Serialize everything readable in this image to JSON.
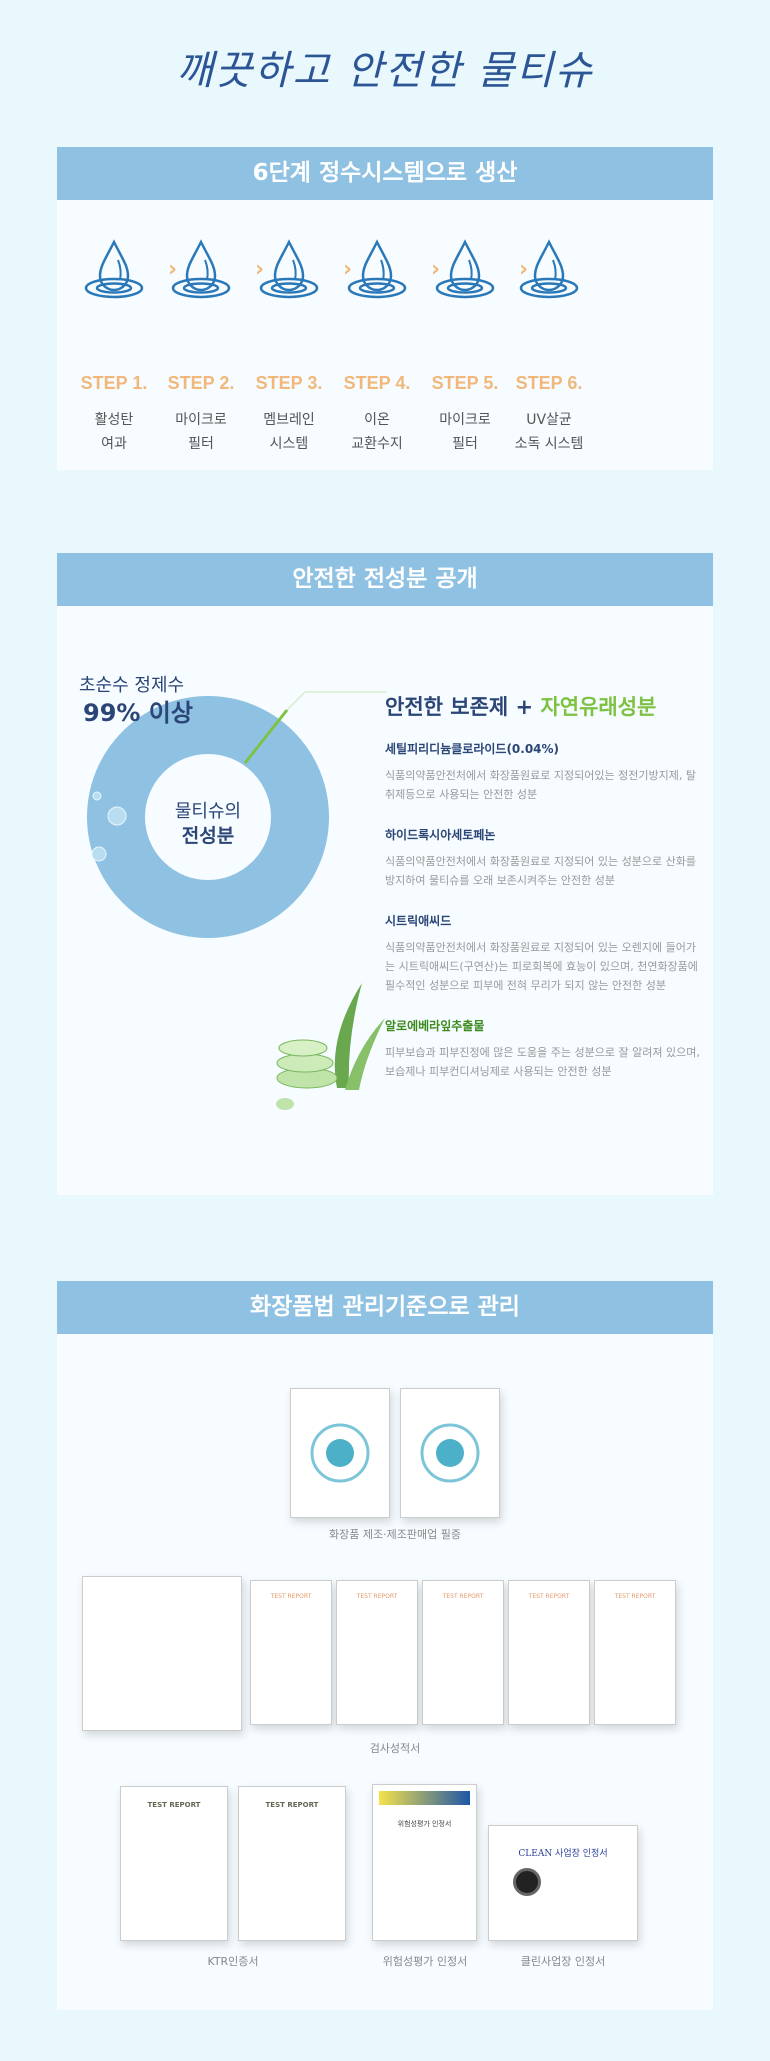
{
  "title": "깨끗하고 안전한 물티슈",
  "section1": {
    "header": "6단계 정수시스템으로 생산",
    "steps": [
      {
        "step": "STEP 1.",
        "line1": "활성탄",
        "line2": "여과"
      },
      {
        "step": "STEP 2.",
        "line1": "마이크로",
        "line2": "필터"
      },
      {
        "step": "STEP 3.",
        "line1": "멤브레인",
        "line2": "시스템"
      },
      {
        "step": "STEP 4.",
        "line1": "이온",
        "line2": "교환수지"
      },
      {
        "step": "STEP 5.",
        "line1": "마이크로",
        "line2": "필터"
      },
      {
        "step": "STEP 6.",
        "line1": "UV살균",
        "line2": "소독 시스템"
      }
    ],
    "icon": "water-drop-icon",
    "accent": "#f2b77a"
  },
  "section2": {
    "header": "안전한 전성분 공개",
    "donut": {
      "label1": "초순수 정제수",
      "label2": "99% 이상",
      "center1": "물티슈의",
      "center2": "전성분",
      "purified_water_percent": 99,
      "color": "#8fc1e3",
      "accent": "#7dc242"
    },
    "heading_a": "안전한 보존제 + ",
    "heading_b": "자연유래성분",
    "ingredients": [
      {
        "name": "세틸피리디늄클로라이드(0.04%)",
        "desc": "식품의약품안전처에서 화장품원료로 지정되어있는 정전기방지제, 탈취제등으로 사용되는 안전한 성분"
      },
      {
        "name": "하이드록시아세토페논",
        "desc": "식품의약품안전처에서 화장품원료로 지정되어 있는 성분으로 산화를 방지하여 물티슈를 오래 보존시켜주는 안전한 성분"
      },
      {
        "name": "시트릭애씨드",
        "desc": "식품의약품안전처에서 화장품원료로 지정되어 있는 오렌지에 들어가는 시트릭애씨드(구연산)는 피로회복에 효능이 있으며, 천연화장품에 필수적인 성분으로 피부에 전혀 무리가 되지 않는 안전한 성분"
      },
      {
        "name": "알로에베라잎추출물",
        "desc": "피부보습과 피부진정에 많은 도움을 주는 성분으로 잘 알려져 있으며, 보습제나 피부컨디셔닝제로 사용되는 안전한 성분"
      }
    ]
  },
  "section3": {
    "header": "화장품법 관리기준으로 관리",
    "captions": {
      "license": "화장품 제조·제조판매업 필증",
      "test": "검사성적서",
      "ktr": "KTR인증서",
      "risk": "위험성평가 인정서",
      "clean": "클린사업장 인정서"
    },
    "doc_texts": {
      "test_report": "TEST REPORT",
      "clean_title": "CLEAN 사업장 인정서",
      "risk_title": "위험성평가 인정서"
    }
  }
}
